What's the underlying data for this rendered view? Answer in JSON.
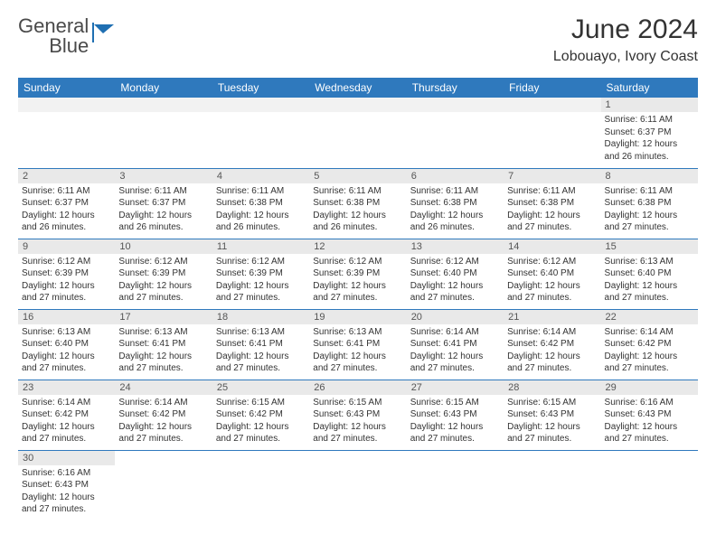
{
  "logo": {
    "line1": "General",
    "line2": "Blue"
  },
  "title": "June 2024",
  "location": "Lobouayo, Ivory Coast",
  "colors": {
    "header_bg": "#2f79bd",
    "header_text": "#ffffff",
    "daynum_bg": "#e9e9e9",
    "cell_border": "#2f79bd",
    "text": "#333333",
    "logo_gray": "#4a4a4a",
    "logo_blue": "#1f6fb2"
  },
  "daynames": [
    "Sunday",
    "Monday",
    "Tuesday",
    "Wednesday",
    "Thursday",
    "Friday",
    "Saturday"
  ],
  "weeks": [
    [
      {
        "blank": true
      },
      {
        "blank": true
      },
      {
        "blank": true
      },
      {
        "blank": true
      },
      {
        "blank": true
      },
      {
        "blank": true
      },
      {
        "n": "1",
        "sr": "Sunrise: 6:11 AM",
        "ss": "Sunset: 6:37 PM",
        "d1": "Daylight: 12 hours",
        "d2": "and 26 minutes."
      }
    ],
    [
      {
        "n": "2",
        "sr": "Sunrise: 6:11 AM",
        "ss": "Sunset: 6:37 PM",
        "d1": "Daylight: 12 hours",
        "d2": "and 26 minutes."
      },
      {
        "n": "3",
        "sr": "Sunrise: 6:11 AM",
        "ss": "Sunset: 6:37 PM",
        "d1": "Daylight: 12 hours",
        "d2": "and 26 minutes."
      },
      {
        "n": "4",
        "sr": "Sunrise: 6:11 AM",
        "ss": "Sunset: 6:38 PM",
        "d1": "Daylight: 12 hours",
        "d2": "and 26 minutes."
      },
      {
        "n": "5",
        "sr": "Sunrise: 6:11 AM",
        "ss": "Sunset: 6:38 PM",
        "d1": "Daylight: 12 hours",
        "d2": "and 26 minutes."
      },
      {
        "n": "6",
        "sr": "Sunrise: 6:11 AM",
        "ss": "Sunset: 6:38 PM",
        "d1": "Daylight: 12 hours",
        "d2": "and 26 minutes."
      },
      {
        "n": "7",
        "sr": "Sunrise: 6:11 AM",
        "ss": "Sunset: 6:38 PM",
        "d1": "Daylight: 12 hours",
        "d2": "and 27 minutes."
      },
      {
        "n": "8",
        "sr": "Sunrise: 6:11 AM",
        "ss": "Sunset: 6:38 PM",
        "d1": "Daylight: 12 hours",
        "d2": "and 27 minutes."
      }
    ],
    [
      {
        "n": "9",
        "sr": "Sunrise: 6:12 AM",
        "ss": "Sunset: 6:39 PM",
        "d1": "Daylight: 12 hours",
        "d2": "and 27 minutes."
      },
      {
        "n": "10",
        "sr": "Sunrise: 6:12 AM",
        "ss": "Sunset: 6:39 PM",
        "d1": "Daylight: 12 hours",
        "d2": "and 27 minutes."
      },
      {
        "n": "11",
        "sr": "Sunrise: 6:12 AM",
        "ss": "Sunset: 6:39 PM",
        "d1": "Daylight: 12 hours",
        "d2": "and 27 minutes."
      },
      {
        "n": "12",
        "sr": "Sunrise: 6:12 AM",
        "ss": "Sunset: 6:39 PM",
        "d1": "Daylight: 12 hours",
        "d2": "and 27 minutes."
      },
      {
        "n": "13",
        "sr": "Sunrise: 6:12 AM",
        "ss": "Sunset: 6:40 PM",
        "d1": "Daylight: 12 hours",
        "d2": "and 27 minutes."
      },
      {
        "n": "14",
        "sr": "Sunrise: 6:12 AM",
        "ss": "Sunset: 6:40 PM",
        "d1": "Daylight: 12 hours",
        "d2": "and 27 minutes."
      },
      {
        "n": "15",
        "sr": "Sunrise: 6:13 AM",
        "ss": "Sunset: 6:40 PM",
        "d1": "Daylight: 12 hours",
        "d2": "and 27 minutes."
      }
    ],
    [
      {
        "n": "16",
        "sr": "Sunrise: 6:13 AM",
        "ss": "Sunset: 6:40 PM",
        "d1": "Daylight: 12 hours",
        "d2": "and 27 minutes."
      },
      {
        "n": "17",
        "sr": "Sunrise: 6:13 AM",
        "ss": "Sunset: 6:41 PM",
        "d1": "Daylight: 12 hours",
        "d2": "and 27 minutes."
      },
      {
        "n": "18",
        "sr": "Sunrise: 6:13 AM",
        "ss": "Sunset: 6:41 PM",
        "d1": "Daylight: 12 hours",
        "d2": "and 27 minutes."
      },
      {
        "n": "19",
        "sr": "Sunrise: 6:13 AM",
        "ss": "Sunset: 6:41 PM",
        "d1": "Daylight: 12 hours",
        "d2": "and 27 minutes."
      },
      {
        "n": "20",
        "sr": "Sunrise: 6:14 AM",
        "ss": "Sunset: 6:41 PM",
        "d1": "Daylight: 12 hours",
        "d2": "and 27 minutes."
      },
      {
        "n": "21",
        "sr": "Sunrise: 6:14 AM",
        "ss": "Sunset: 6:42 PM",
        "d1": "Daylight: 12 hours",
        "d2": "and 27 minutes."
      },
      {
        "n": "22",
        "sr": "Sunrise: 6:14 AM",
        "ss": "Sunset: 6:42 PM",
        "d1": "Daylight: 12 hours",
        "d2": "and 27 minutes."
      }
    ],
    [
      {
        "n": "23",
        "sr": "Sunrise: 6:14 AM",
        "ss": "Sunset: 6:42 PM",
        "d1": "Daylight: 12 hours",
        "d2": "and 27 minutes."
      },
      {
        "n": "24",
        "sr": "Sunrise: 6:14 AM",
        "ss": "Sunset: 6:42 PM",
        "d1": "Daylight: 12 hours",
        "d2": "and 27 minutes."
      },
      {
        "n": "25",
        "sr": "Sunrise: 6:15 AM",
        "ss": "Sunset: 6:42 PM",
        "d1": "Daylight: 12 hours",
        "d2": "and 27 minutes."
      },
      {
        "n": "26",
        "sr": "Sunrise: 6:15 AM",
        "ss": "Sunset: 6:43 PM",
        "d1": "Daylight: 12 hours",
        "d2": "and 27 minutes."
      },
      {
        "n": "27",
        "sr": "Sunrise: 6:15 AM",
        "ss": "Sunset: 6:43 PM",
        "d1": "Daylight: 12 hours",
        "d2": "and 27 minutes."
      },
      {
        "n": "28",
        "sr": "Sunrise: 6:15 AM",
        "ss": "Sunset: 6:43 PM",
        "d1": "Daylight: 12 hours",
        "d2": "and 27 minutes."
      },
      {
        "n": "29",
        "sr": "Sunrise: 6:16 AM",
        "ss": "Sunset: 6:43 PM",
        "d1": "Daylight: 12 hours",
        "d2": "and 27 minutes."
      }
    ],
    [
      {
        "n": "30",
        "sr": "Sunrise: 6:16 AM",
        "ss": "Sunset: 6:43 PM",
        "d1": "Daylight: 12 hours",
        "d2": "and 27 minutes."
      },
      {
        "blank": true
      },
      {
        "blank": true
      },
      {
        "blank": true
      },
      {
        "blank": true
      },
      {
        "blank": true
      },
      {
        "blank": true
      }
    ]
  ]
}
